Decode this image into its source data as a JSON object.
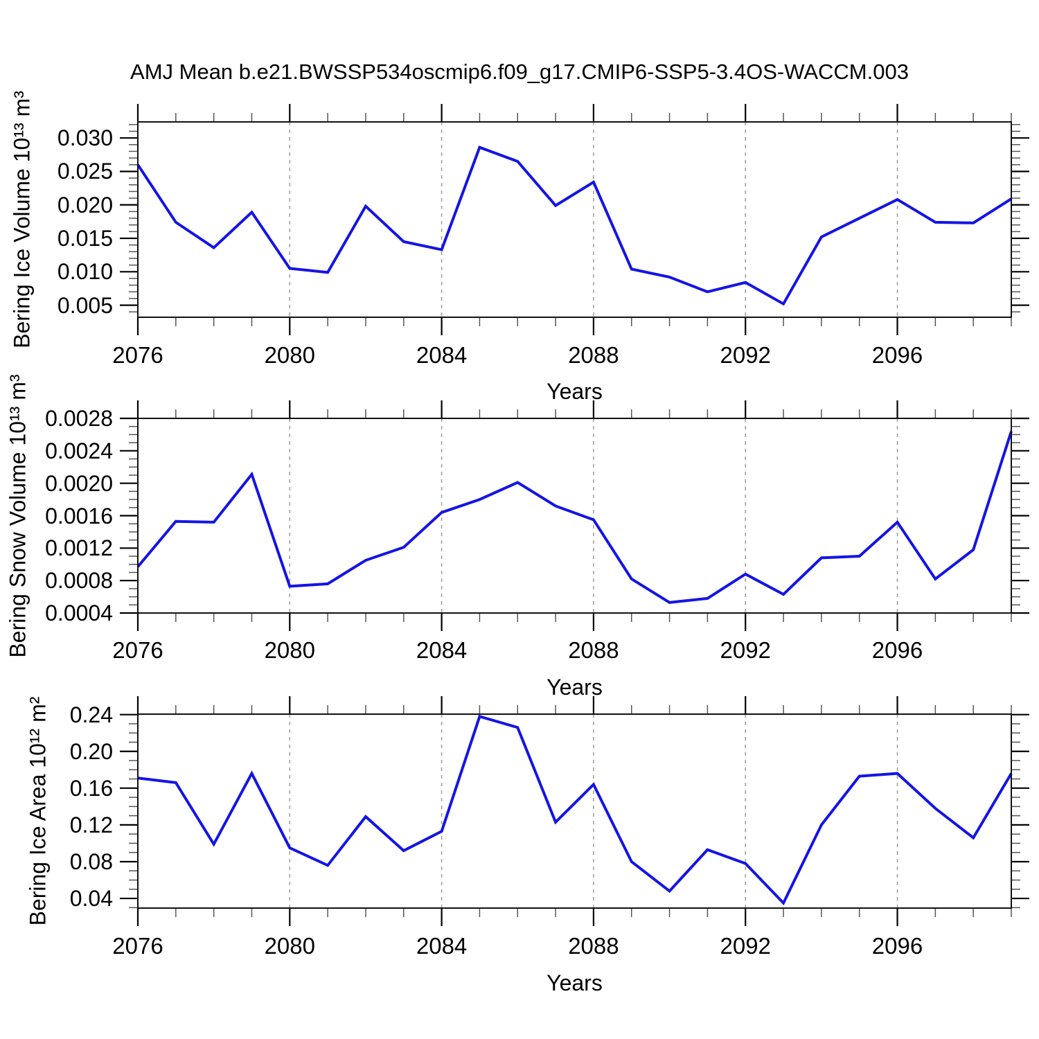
{
  "title": "AMJ Mean b.e21.BWSSP534oscmip6.f09_g17.CMIP6-SSP5-3.4OS-WACCM.003",
  "x_tick_years": [
    2076,
    2080,
    2084,
    2088,
    2092,
    2096
  ],
  "x_tick_labels": [
    "2076",
    "2080",
    "2084",
    "2088",
    "2092",
    "2096"
  ],
  "style": {
    "line_color": "#1414e6",
    "frame_color": "#111111",
    "grid_color": "#999999",
    "tick_major_color": "#000000",
    "tick_minor_color": "#555555",
    "text_color": "#000000",
    "background_color": "#ffffff"
  },
  "chart_data": [
    {
      "type": "line",
      "ylabel": "Bering Ice Volume 10¹³ m³",
      "xlabel": "Years",
      "x": [
        2076,
        2077,
        2078,
        2079,
        2080,
        2081,
        2082,
        2083,
        2084,
        2085,
        2086,
        2087,
        2088,
        2089,
        2090,
        2091,
        2092,
        2093,
        2094,
        2095,
        2096,
        2097,
        2098,
        2099
      ],
      "values": [
        0.026,
        0.0174,
        0.0136,
        0.0189,
        0.0105,
        0.0099,
        0.0198,
        0.0145,
        0.0133,
        0.0286,
        0.0265,
        0.0199,
        0.0234,
        0.0104,
        0.0092,
        0.007,
        0.0084,
        0.0052,
        0.0152,
        0.018,
        0.0208,
        0.0174,
        0.0173,
        0.0209
      ],
      "xlim": [
        2076,
        2099
      ],
      "ylim": [
        0.0032,
        0.0324
      ],
      "yticks": [
        0.005,
        0.01,
        0.015,
        0.02,
        0.025,
        0.03
      ],
      "ytick_labels": [
        "0.005",
        "0.010",
        "0.015",
        "0.020",
        "0.025",
        "0.030"
      ],
      "ytick_minor_step": 0.001,
      "grid_x": [
        2080,
        2084,
        2088,
        2092,
        2096
      ],
      "grid_style": "dashed",
      "legend": "none"
    },
    {
      "type": "line",
      "ylabel": "Bering Snow Volume 10¹³ m³",
      "xlabel": "Years",
      "x": [
        2076,
        2077,
        2078,
        2079,
        2080,
        2081,
        2082,
        2083,
        2084,
        2085,
        2086,
        2087,
        2088,
        2089,
        2090,
        2091,
        2092,
        2093,
        2094,
        2095,
        2096,
        2097,
        2098,
        2099
      ],
      "values": [
        0.00097,
        0.00153,
        0.00152,
        0.00211,
        0.00073,
        0.00076,
        0.00105,
        0.00121,
        0.00164,
        0.0018,
        0.00201,
        0.00172,
        0.00155,
        0.00082,
        0.00053,
        0.00058,
        0.00088,
        0.00063,
        0.00108,
        0.0011,
        0.00152,
        0.00082,
        0.00118,
        0.00264
      ],
      "xlim": [
        2076,
        2099
      ],
      "ylim": [
        0.0004,
        0.0028
      ],
      "yticks": [
        0.0004,
        0.0008,
        0.0012,
        0.0016,
        0.002,
        0.0024,
        0.0028
      ],
      "ytick_labels": [
        "0.0004",
        "0.0008",
        "0.0012",
        "0.0016",
        "0.0020",
        "0.0024",
        "0.0028"
      ],
      "ytick_minor_step": 0.0001,
      "grid_x": [
        2080,
        2084,
        2088,
        2092,
        2096
      ],
      "grid_style": "dashed",
      "legend": "none"
    },
    {
      "type": "line",
      "ylabel": "Bering Ice Area 10¹² m²",
      "xlabel": "Years",
      "x": [
        2076,
        2077,
        2078,
        2079,
        2080,
        2081,
        2082,
        2083,
        2084,
        2085,
        2086,
        2087,
        2088,
        2089,
        2090,
        2091,
        2092,
        2093,
        2094,
        2095,
        2096,
        2097,
        2098,
        2099
      ],
      "values": [
        0.171,
        0.166,
        0.099,
        0.176,
        0.095,
        0.076,
        0.129,
        0.092,
        0.113,
        0.238,
        0.226,
        0.123,
        0.164,
        0.08,
        0.048,
        0.093,
        0.078,
        0.035,
        0.12,
        0.173,
        0.176,
        0.138,
        0.106,
        0.176
      ],
      "xlim": [
        2076,
        2099
      ],
      "ylim": [
        0.0295,
        0.2405
      ],
      "yticks": [
        0.04,
        0.08,
        0.12,
        0.16,
        0.2,
        0.24
      ],
      "ytick_labels": [
        "0.04",
        "0.08",
        "0.12",
        "0.16",
        "0.20",
        "0.24"
      ],
      "ytick_minor_step": 0.01,
      "grid_x": [
        2080,
        2084,
        2088,
        2092,
        2096
      ],
      "grid_style": "dashed",
      "legend": "none"
    }
  ]
}
